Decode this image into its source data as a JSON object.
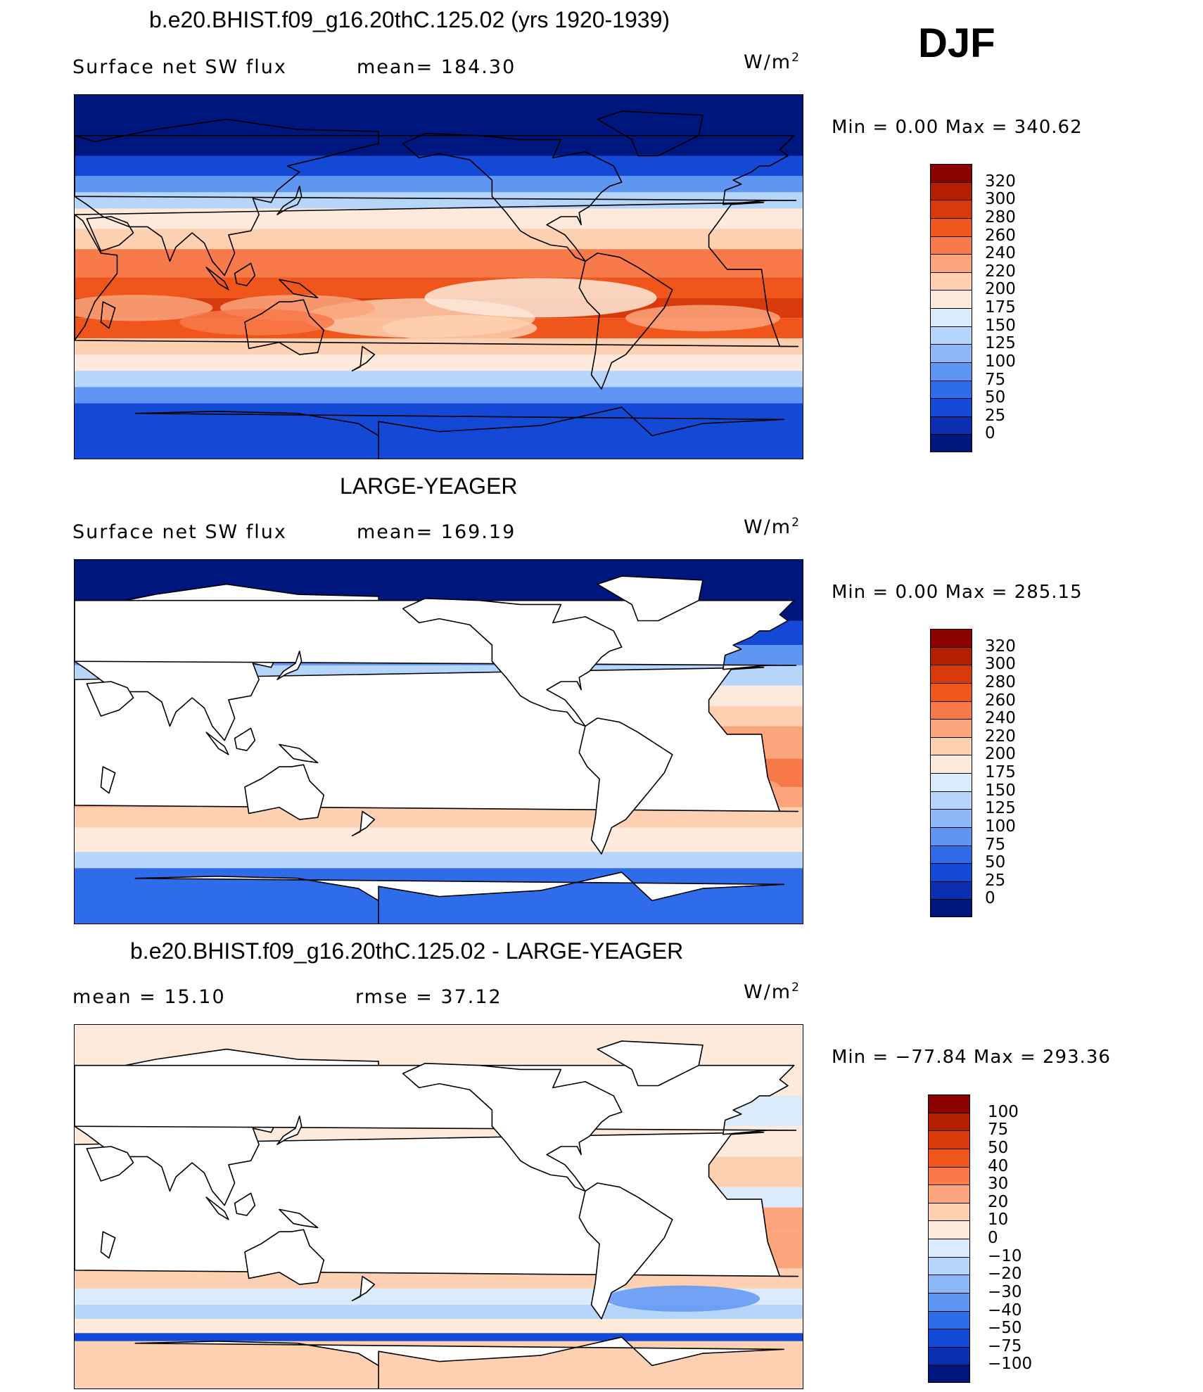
{
  "season": "DJF",
  "units": {
    "base": "W/m",
    "exp": "2"
  },
  "panels": [
    {
      "title": "b.e20.BHIST.f09_g16.20thC.125.02 (yrs 1920-1939)",
      "left_text": "Surface  net  SW  flux",
      "right_text": "mean=  184.30",
      "minmax": "Min  =      0.00  Max  =  340.62",
      "kind": "model"
    },
    {
      "title": "LARGE-YEAGER",
      "left_text": "Surface  net  SW  flux",
      "right_text": "mean=  169.19",
      "minmax": "Min  =      0.00  Max  =  285.15",
      "kind": "obs"
    },
    {
      "title": "b.e20.BHIST.f09_g16.20thC.125.02 - LARGE-YEAGER",
      "left_text": "mean  =    15.10",
      "right_text": "rmse  =    37.12",
      "minmax": "Min  =  −77.84  Max  =  293.36",
      "kind": "diff"
    }
  ],
  "chart_data": [
    {
      "type": "heatmap",
      "title": "b.e20.BHIST.f09_g16.20thC.125.02 (yrs 1920-1939)",
      "variable": "Surface net SW flux",
      "season": "DJF",
      "units": "W/m2",
      "mean": 184.3,
      "min": 0.0,
      "max": 340.62,
      "colorbar_levels": [
        "320",
        "300",
        "280",
        "260",
        "240",
        "220",
        "200",
        "175",
        "150",
        "125",
        "100",
        "75",
        "50",
        "25",
        "0"
      ],
      "colors": [
        "#8b0000",
        "#b41f00",
        "#d83a0c",
        "#f0561c",
        "#f8794a",
        "#fca57c",
        "#fdd0b1",
        "#fdeadb",
        "#d9ebfc",
        "#b6d5fb",
        "#8cb8f8",
        "#5f96f3",
        "#2e6cea",
        "#1448d6",
        "#0a2fb0",
        "#00167f"
      ]
    },
    {
      "type": "heatmap",
      "title": "LARGE-YEAGER",
      "variable": "Surface net SW flux",
      "season": "DJF",
      "units": "W/m2",
      "mean": 169.19,
      "min": 0.0,
      "max": 285.15,
      "colorbar_levels": [
        "320",
        "300",
        "280",
        "260",
        "240",
        "220",
        "200",
        "175",
        "150",
        "125",
        "100",
        "75",
        "50",
        "25",
        "0"
      ],
      "colors": [
        "#8b0000",
        "#b41f00",
        "#d83a0c",
        "#f0561c",
        "#f8794a",
        "#fca57c",
        "#fdd0b1",
        "#fdeadb",
        "#d9ebfc",
        "#b6d5fb",
        "#8cb8f8",
        "#5f96f3",
        "#2e6cea",
        "#1448d6",
        "#0a2fb0",
        "#00167f"
      ]
    },
    {
      "type": "heatmap",
      "title": "b.e20.BHIST.f09_g16.20thC.125.02 - LARGE-YEAGER",
      "season": "DJF",
      "units": "W/m2",
      "mean": 15.1,
      "rmse": 37.12,
      "min": -77.84,
      "max": 293.36,
      "colorbar_levels": [
        "100",
        "75",
        "50",
        "40",
        "30",
        "20",
        "10",
        "0",
        "−10",
        "−20",
        "−30",
        "−40",
        "−50",
        "−75",
        "−100"
      ],
      "colors": [
        "#8b0000",
        "#b41f00",
        "#d83a0c",
        "#f0561c",
        "#f8794a",
        "#fca57c",
        "#fdd0b1",
        "#fdeadb",
        "#d9ebfc",
        "#b6d5fb",
        "#8cb8f8",
        "#5f96f3",
        "#2e6cea",
        "#1448d6",
        "#0a2fb0",
        "#00167f"
      ]
    }
  ]
}
